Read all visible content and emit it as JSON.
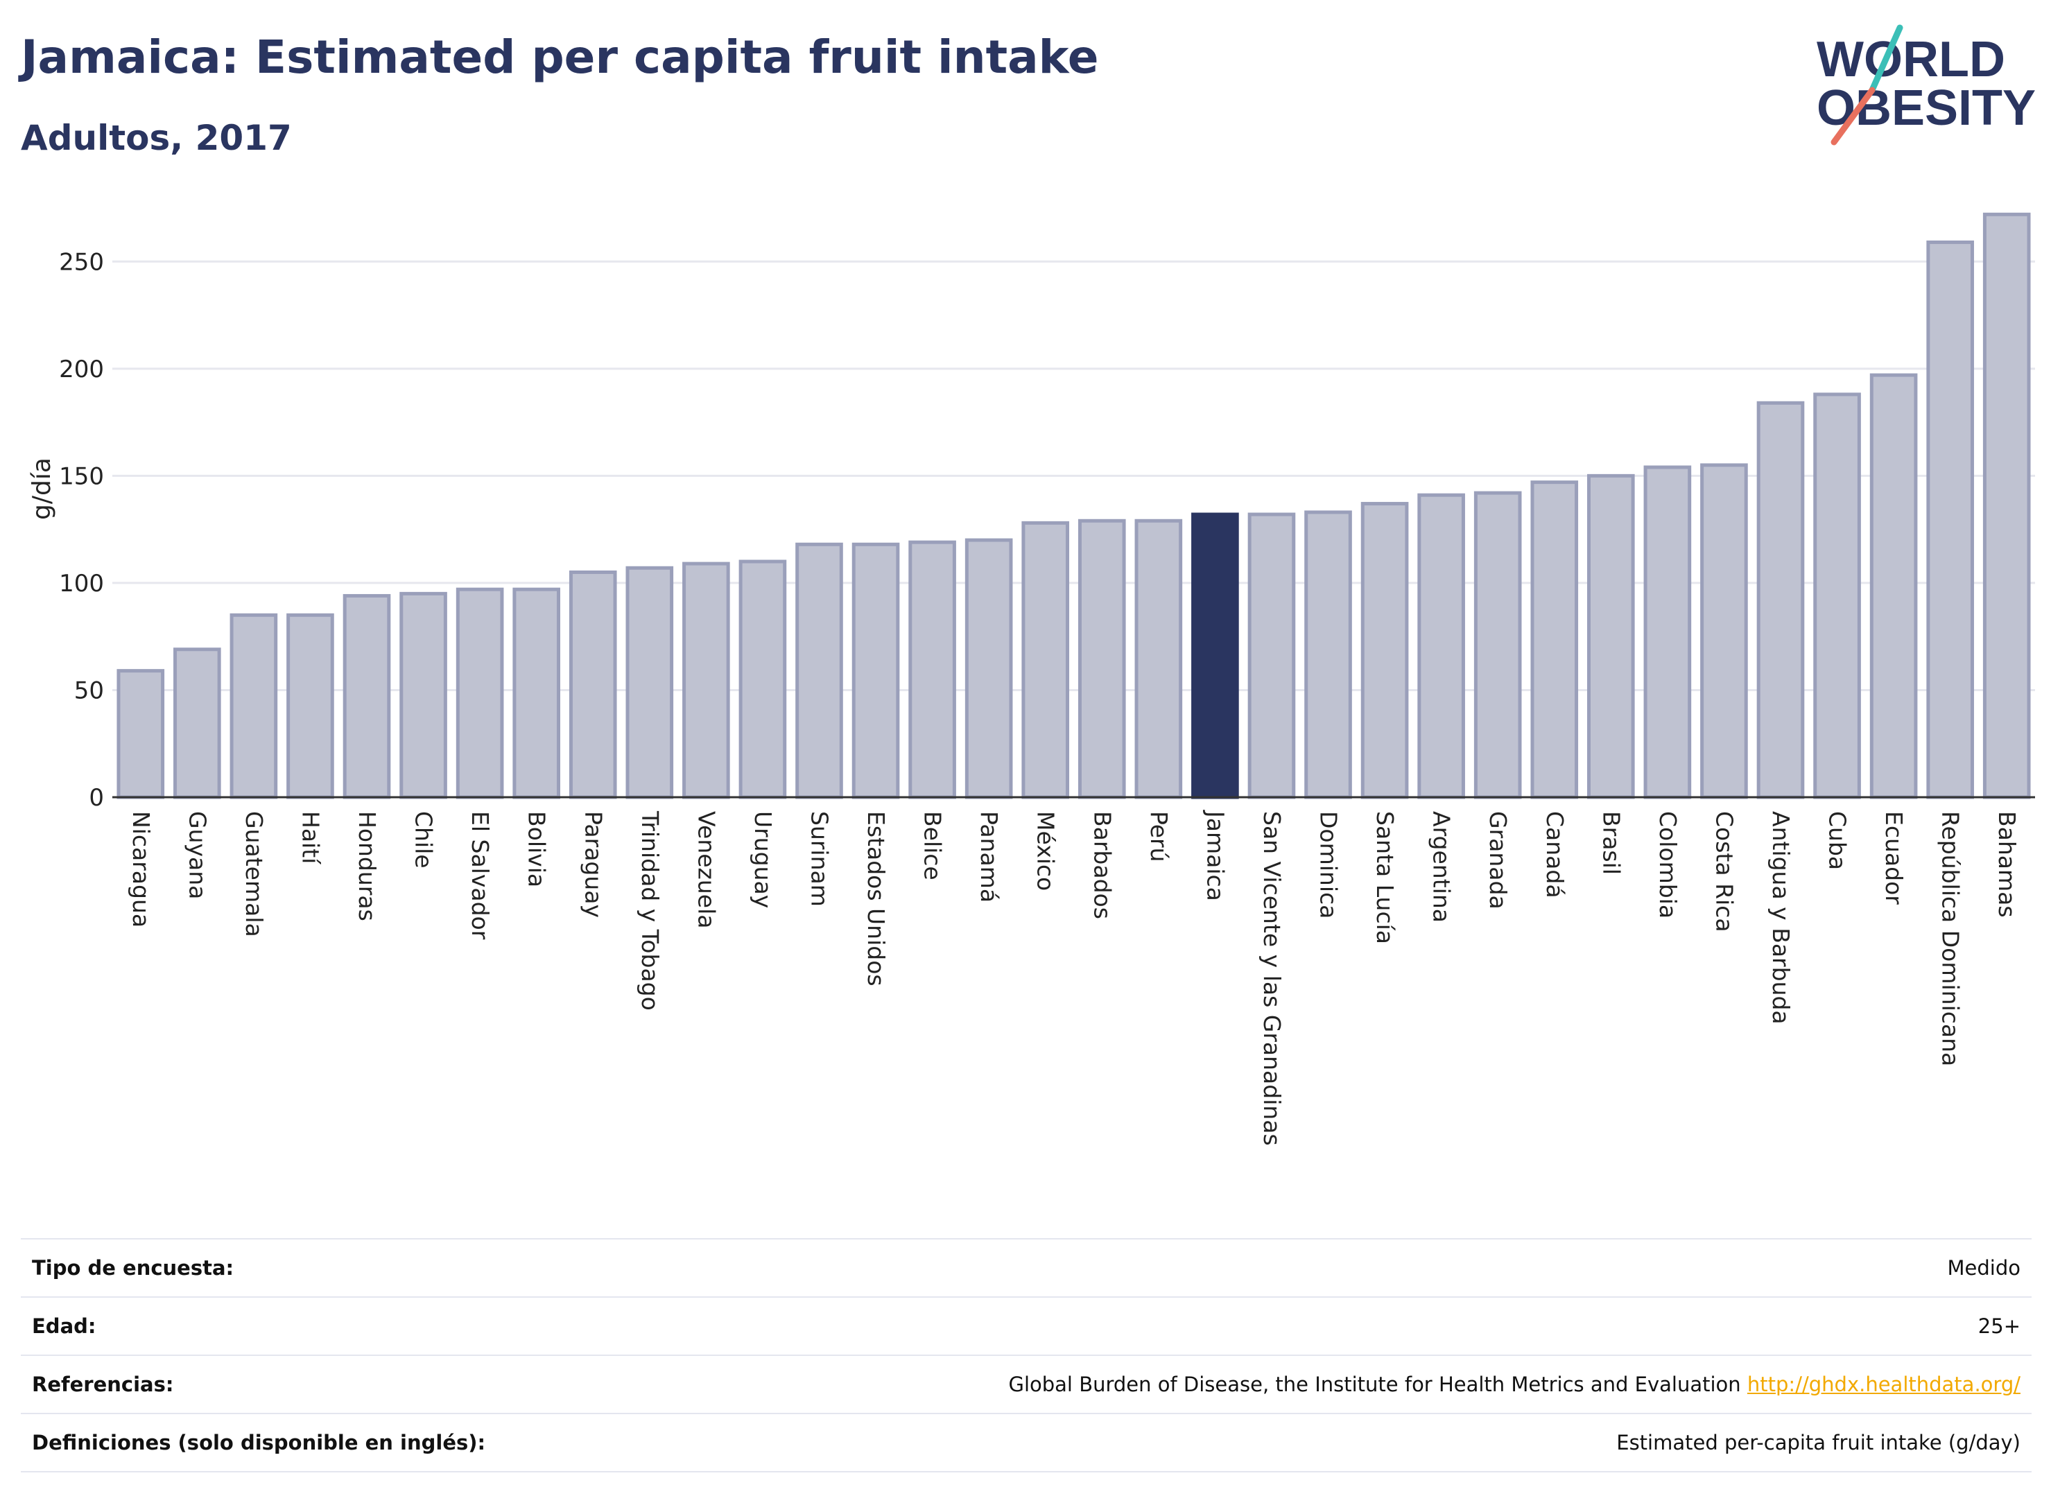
{
  "header": {
    "title": "Jamaica: Estimated per capita fruit intake",
    "subtitle": "Adultos, 2017"
  },
  "logo": {
    "line1": "WORLD",
    "line2": "OBESITY",
    "accent_teal": "#3bbfb7",
    "accent_coral": "#e8705e",
    "text_color": "#2a3560"
  },
  "colors": {
    "bar_default": "#bfc2d1",
    "bar_border": "#9a9fba",
    "bar_highlight": "#2a3560",
    "grid": "#e6e7ee"
  },
  "chart_data": {
    "type": "bar",
    "ylabel": "g/día",
    "ylim": [
      0,
      275
    ],
    "yticks": [
      0,
      50,
      100,
      150,
      200,
      250
    ],
    "grid": true,
    "highlight": "Jamaica",
    "categories": [
      "Nicaragua",
      "Guyana",
      "Guatemala",
      "Haití",
      "Honduras",
      "Chile",
      "El Salvador",
      "Bolivia",
      "Paraguay",
      "Trinidad y Tobago",
      "Venezuela",
      "Uruguay",
      "Surinam",
      "Estados Unidos",
      "Belice",
      "Panamá",
      "México",
      "Barbados",
      "Perú",
      "Jamaica",
      "San Vicente y las Granadinas",
      "Dominica",
      "Santa Lucía",
      "Argentina",
      "Granada",
      "Canadá",
      "Brasil",
      "Colombia",
      "Costa Rica",
      "Antigua y Barbuda",
      "Cuba",
      "Ecuador",
      "República Dominicana",
      "Bahamas"
    ],
    "values": [
      59,
      69,
      85,
      85,
      94,
      95,
      97,
      97,
      105,
      107,
      109,
      110,
      118,
      118,
      119,
      120,
      128,
      129,
      129,
      132,
      132,
      133,
      137,
      141,
      142,
      147,
      150,
      154,
      155,
      184,
      188,
      197,
      259,
      272
    ]
  },
  "meta": [
    {
      "label": "Tipo de encuesta:",
      "value": "Medido"
    },
    {
      "label": "Edad:",
      "value": "25+"
    },
    {
      "label": "Referencias:",
      "value": "Global Burden of Disease, the Institute for Health Metrics and Evaluation",
      "link": "http://ghdx.healthdata.org/"
    },
    {
      "label": "Definiciones (solo disponible en inglés):",
      "value": "Estimated per-capita fruit intake (g/day)"
    }
  ]
}
